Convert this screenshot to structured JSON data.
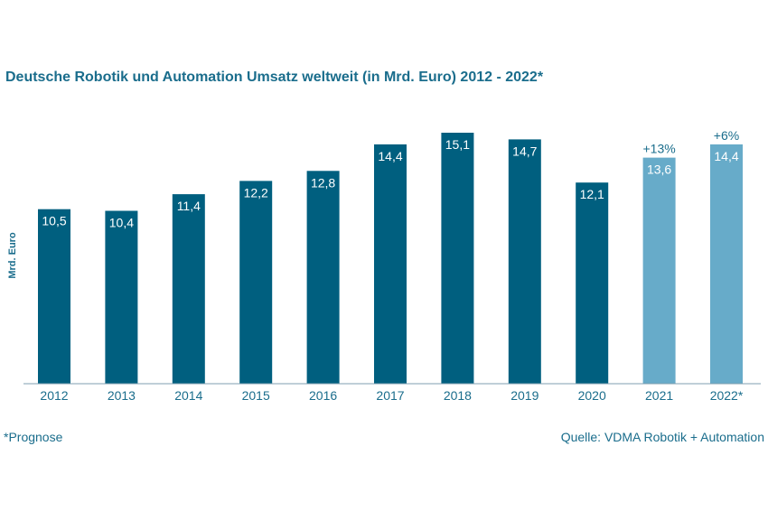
{
  "chart_data": {
    "type": "bar",
    "title": "Deutsche Robotik und Automation Umsatz weltweit (in Mrd. Euro) 2012 - 2022*",
    "xlabel": "",
    "ylabel": "Mrd. Euro",
    "ylim": [
      0,
      15.1
    ],
    "grid": false,
    "legend": "none",
    "categories": [
      "2012",
      "2013",
      "2014",
      "2015",
      "2016",
      "2017",
      "2018",
      "2019",
      "2020",
      "2021",
      "2022*"
    ],
    "values": [
      10.5,
      10.4,
      11.4,
      12.2,
      12.8,
      14.4,
      15.1,
      14.7,
      12.1,
      13.6,
      14.4
    ],
    "value_labels": [
      "10,5",
      "10,4",
      "11,4",
      "12,2",
      "12,8",
      "14,4",
      "15,1",
      "14,7",
      "12,1",
      "13,6",
      "14,4"
    ],
    "forecast": [
      false,
      false,
      false,
      false,
      false,
      false,
      false,
      false,
      false,
      true,
      true
    ],
    "growth_labels": [
      "",
      "",
      "",
      "",
      "",
      "",
      "",
      "",
      "",
      "+13%",
      "+6%"
    ],
    "colors": {
      "actual": "#005f7f",
      "forecast": "#67abc9",
      "text": "#1a6d8c",
      "axis": "#7f9fb0",
      "bar_label": "#ffffff"
    }
  },
  "footnote": "*Prognose",
  "source": "Quelle: VDMA Robotik + Automation"
}
